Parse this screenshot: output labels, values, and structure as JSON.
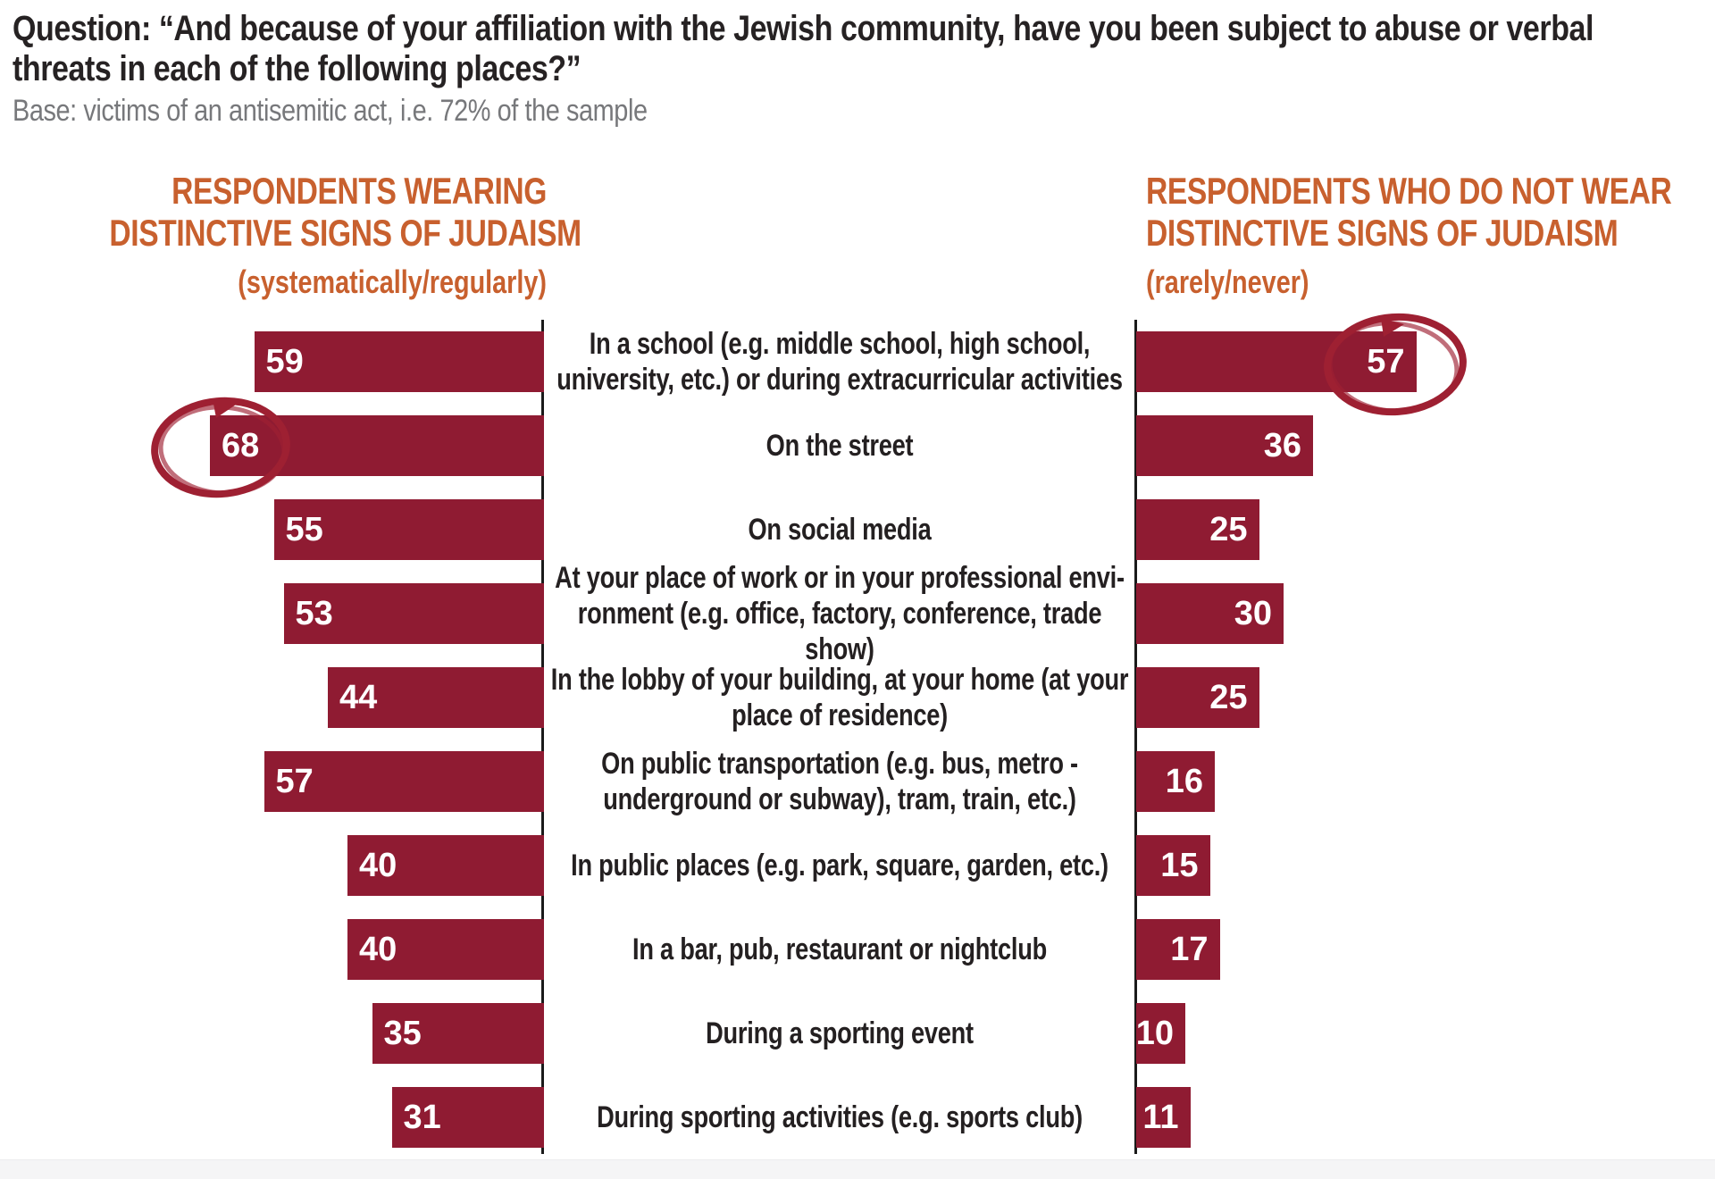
{
  "page": {
    "title_line1": "Question: “And because of your affiliation with the Jewish community, have you been subject to abuse or verbal",
    "title_line2": "threats in each of the following places?”",
    "base_note": "Base: victims of an antisemitic act, i.e. 72% of the sample"
  },
  "headers": {
    "left": {
      "line1": "RESPONDENTS WEARING",
      "line2": "DISTINCTIVE SIGNS OF JUDAISM",
      "qualifier": "(systematically/regularly)"
    },
    "right": {
      "line1": "RESPONDENTS WHO DO NOT WEAR",
      "line2": "DISTINCTIVE SIGNS OF JUDAISM",
      "qualifier": "(rarely/never)"
    }
  },
  "colors": {
    "bar_maroon": "#8F1B32",
    "header_orange": "#C8602E",
    "circle_annotation": "#9E2032",
    "title_dark": "#262223",
    "note_gray": "#77787B",
    "axis_black": "#1A1A1A",
    "footer_gray": "#F5F5F6"
  },
  "chart_data": {
    "type": "bar",
    "layout": "butterfly-diverging-horizontal",
    "value_unit": "percent of victims",
    "value_labels": "inside-end, white",
    "axes": "two central vertical baselines, no ticks, no gridlines",
    "categories": [
      "In a school (e.g. middle school, high school, university, etc.) or during extracurricular activities",
      "On the street",
      "On social media",
      "At your place of work or in your professional environment (e.g. office, factory, conference, trade show)",
      "In the lobby of your building, at your home (at your place of residence)",
      "On public transportation (e.g. bus, metro - underground or subway), tram, train, etc.)",
      "In public places (e.g. park, square, garden, etc.)",
      "In a bar, pub, restaurant or nightclub",
      "During a sporting event",
      "During sporting activities (e.g. sports club)"
    ],
    "category_display_lines": [
      [
        "In a school (e.g. middle school, high school,",
        "university, etc.) or during extracurricular activities"
      ],
      [
        "On the street"
      ],
      [
        "On social media"
      ],
      [
        "At your place of work or in your professional envi-",
        "ronment (e.g. office, factory, conference, trade show)"
      ],
      [
        "In the lobby of your building, at your home (at your",
        "place of residence)"
      ],
      [
        "On public transportation (e.g. bus, metro -",
        "underground or subway), tram, train, etc.)"
      ],
      [
        "In public places (e.g. park, square, garden, etc.)"
      ],
      [
        "In a bar, pub, restaurant or nightclub"
      ],
      [
        "During a sporting event"
      ],
      [
        "During sporting activities (e.g. sports club)"
      ]
    ],
    "series": [
      {
        "name": "Respondents wearing distinctive signs of Judaism (systematically/regularly)",
        "side": "left",
        "values": [
          59,
          68,
          55,
          53,
          44,
          57,
          40,
          40,
          35,
          31
        ]
      },
      {
        "name": "Respondents who do not wear distinctive signs of Judaism (rarely/never)",
        "side": "right",
        "values": [
          57,
          36,
          25,
          30,
          25,
          16,
          15,
          17,
          10,
          11
        ]
      }
    ],
    "annotations": [
      {
        "type": "hand-drawn-circle",
        "series": "left",
        "category_index": 1,
        "highlighted_value": 68
      },
      {
        "type": "hand-drawn-circle",
        "series": "right",
        "category_index": 0,
        "highlighted_value": 57
      }
    ],
    "xlim_each_side": [
      0,
      100
    ]
  }
}
